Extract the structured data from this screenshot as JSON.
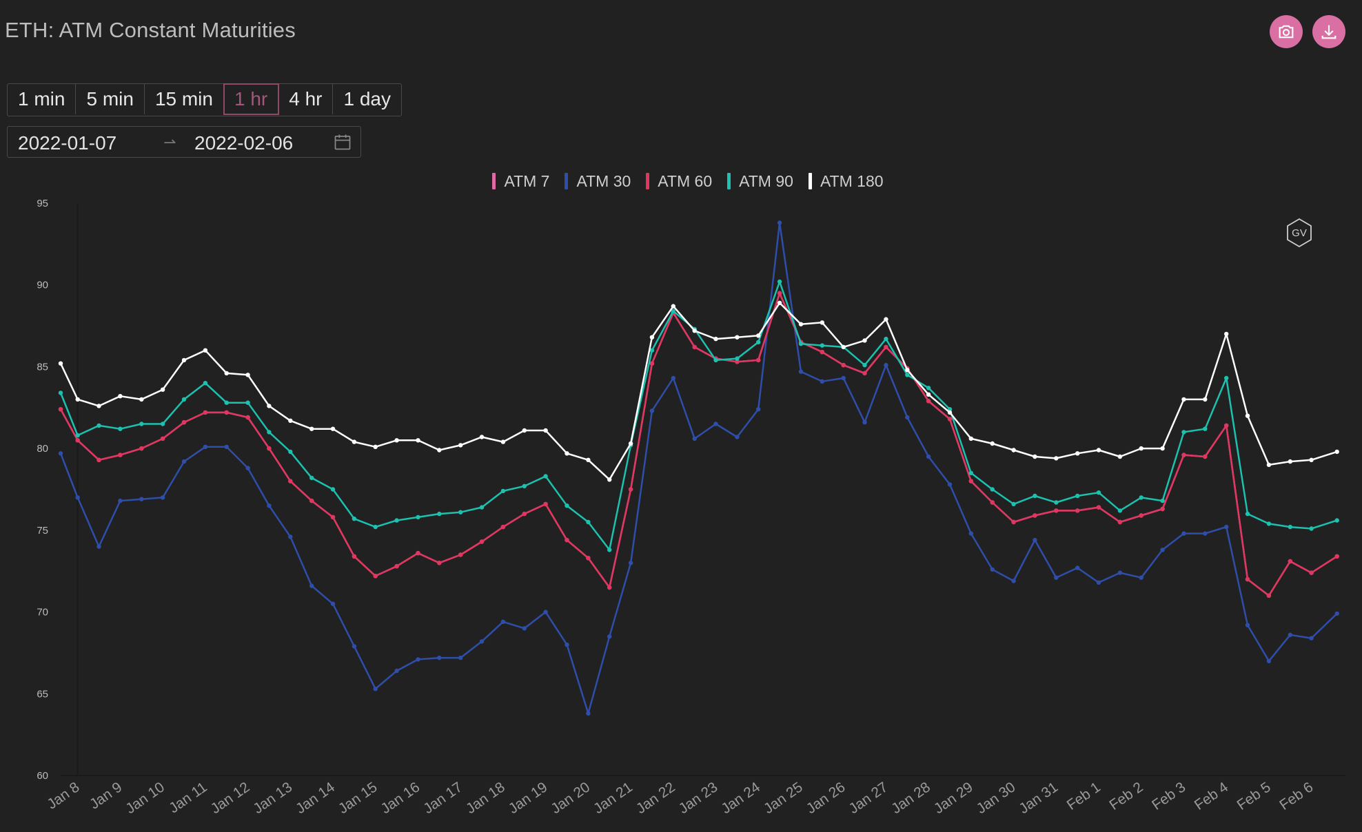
{
  "header": {
    "title": "ETH: ATM Constant Maturities"
  },
  "toolbar": {
    "camera_icon": "camera-icon",
    "download_icon": "download-icon"
  },
  "intervals": [
    {
      "label": "1 min",
      "active": false
    },
    {
      "label": "5 min",
      "active": false
    },
    {
      "label": "15 min",
      "active": false
    },
    {
      "label": "1 hr",
      "active": true
    },
    {
      "label": "4 hr",
      "active": false
    },
    {
      "label": "1 day",
      "active": false
    }
  ],
  "date_range": {
    "start": "2022-01-07",
    "end": "2022-02-06"
  },
  "watermark": {
    "text": "GV"
  },
  "chart_data": {
    "type": "line",
    "x": [
      "Jan 7.6",
      "Jan 8",
      "Jan 8.5",
      "Jan 9",
      "Jan 9.5",
      "Jan 10",
      "Jan 10.5",
      "Jan 11",
      "Jan 11.5",
      "Jan 12",
      "Jan 12.5",
      "Jan 13",
      "Jan 13.5",
      "Jan 14",
      "Jan 14.5",
      "Jan 15",
      "Jan 15.5",
      "Jan 16",
      "Jan 16.5",
      "Jan 17",
      "Jan 17.5",
      "Jan 18",
      "Jan 18.5",
      "Jan 19",
      "Jan 19.5",
      "Jan 20",
      "Jan 20.5",
      "Jan 21",
      "Jan 21.5",
      "Jan 22",
      "Jan 22.5",
      "Jan 23",
      "Jan 23.5",
      "Jan 24",
      "Jan 24.5",
      "Jan 25",
      "Jan 25.5",
      "Jan 26",
      "Jan 26.5",
      "Jan 27",
      "Jan 27.5",
      "Jan 28",
      "Jan 28.5",
      "Jan 29",
      "Jan 29.5",
      "Jan 30",
      "Jan 30.5",
      "Jan 31",
      "Jan 31.5",
      "Feb 1",
      "Feb 1.5",
      "Feb 2",
      "Feb 2.5",
      "Feb 3",
      "Feb 3.5",
      "Feb 4",
      "Feb 4.5",
      "Feb 5",
      "Feb 5.5",
      "Feb 6",
      "Feb 6.6"
    ],
    "x_numeric": [
      7.6,
      8,
      8.5,
      9,
      9.5,
      10,
      10.5,
      11,
      11.5,
      12,
      12.5,
      13,
      13.5,
      14,
      14.5,
      15,
      15.5,
      16,
      16.5,
      17,
      17.5,
      18,
      18.5,
      19,
      19.5,
      20,
      20.5,
      21,
      21.5,
      22,
      22.5,
      23,
      23.5,
      24,
      24.5,
      25,
      25.5,
      26,
      26.5,
      27,
      27.5,
      28,
      28.5,
      29,
      29.5,
      30,
      30.5,
      31,
      31.5,
      32,
      32.5,
      33,
      33.5,
      34,
      34.5,
      35,
      35.5,
      36,
      36.5,
      37,
      37.6
    ],
    "series": [
      {
        "name": "ATM 7",
        "color": "#e06aa3",
        "values": [
          82.4,
          80.5,
          79.3,
          79.6,
          80.0,
          80.6,
          81.6,
          82.2,
          82.2,
          81.9,
          80.0,
          78.0,
          76.8,
          75.8,
          73.4,
          72.2,
          72.8,
          73.6,
          73.0,
          73.5,
          74.3,
          75.2,
          76.0,
          76.6,
          74.4,
          73.3,
          71.5,
          77.5,
          85.2,
          88.3,
          86.2,
          85.5,
          85.3,
          85.4,
          89.5,
          86.5,
          85.9,
          85.1,
          84.6,
          86.2,
          84.9,
          82.9,
          81.8,
          78.0,
          76.7,
          75.5,
          75.9,
          76.2,
          76.2,
          76.4,
          75.5,
          75.9,
          76.3,
          79.6,
          79.5,
          81.4,
          72.0,
          71.0,
          73.1,
          72.4,
          73.4
        ]
      },
      {
        "name": "ATM 30",
        "color": "#2f4eaa",
        "values": [
          79.7,
          77.0,
          74.0,
          76.8,
          76.9,
          77.0,
          79.2,
          80.1,
          80.1,
          78.8,
          76.5,
          74.6,
          71.6,
          70.5,
          67.9,
          65.3,
          66.4,
          67.1,
          67.2,
          67.2,
          68.2,
          69.4,
          69.0,
          70.0,
          68.0,
          63.8,
          68.5,
          73.0,
          82.3,
          84.3,
          80.6,
          81.5,
          80.7,
          82.4,
          93.8,
          84.7,
          84.1,
          84.3,
          81.6,
          85.1,
          81.9,
          79.5,
          77.8,
          74.8,
          72.6,
          71.9,
          74.4,
          72.1,
          72.7,
          71.8,
          72.4,
          72.1,
          73.8,
          74.8,
          74.8,
          75.2,
          69.2,
          67.0,
          68.6,
          68.4,
          69.9
        ]
      },
      {
        "name": "ATM 60",
        "color": "#e0365f",
        "values": [
          82.4,
          80.5,
          79.3,
          79.6,
          80.0,
          80.6,
          81.6,
          82.2,
          82.2,
          81.9,
          80.0,
          78.0,
          76.8,
          75.8,
          73.4,
          72.2,
          72.8,
          73.6,
          73.0,
          73.5,
          74.3,
          75.2,
          76.0,
          76.6,
          74.4,
          73.3,
          71.5,
          77.5,
          85.2,
          88.3,
          86.2,
          85.5,
          85.3,
          85.4,
          89.5,
          86.5,
          85.9,
          85.1,
          84.6,
          86.2,
          84.9,
          82.9,
          81.8,
          78.0,
          76.7,
          75.5,
          75.9,
          76.2,
          76.2,
          76.4,
          75.5,
          75.9,
          76.3,
          79.6,
          79.5,
          81.4,
          72.0,
          71.0,
          73.1,
          72.4,
          73.4
        ]
      },
      {
        "name": "ATM 90",
        "color": "#1cc1b0",
        "values": [
          83.4,
          80.8,
          81.4,
          81.2,
          81.5,
          81.5,
          83.0,
          84.0,
          82.8,
          82.8,
          81.0,
          79.8,
          78.2,
          77.5,
          75.7,
          75.2,
          75.6,
          75.8,
          76.0,
          76.1,
          76.4,
          77.4,
          77.7,
          78.3,
          76.5,
          75.5,
          73.8,
          80.2,
          86.0,
          88.4,
          87.3,
          85.4,
          85.5,
          86.5,
          90.2,
          86.4,
          86.3,
          86.2,
          85.1,
          86.7,
          84.5,
          83.7,
          82.4,
          78.5,
          77.5,
          76.6,
          77.1,
          76.7,
          77.1,
          77.3,
          76.2,
          77.0,
          76.8,
          81.0,
          81.2,
          84.3,
          76.0,
          75.4,
          75.2,
          75.1,
          75.6
        ]
      },
      {
        "name": "ATM 180",
        "color": "#ffffff",
        "values": [
          85.2,
          83.0,
          82.6,
          83.2,
          83.0,
          83.6,
          85.4,
          86.0,
          84.6,
          84.5,
          82.6,
          81.7,
          81.2,
          81.2,
          80.4,
          80.1,
          80.5,
          80.5,
          79.9,
          80.2,
          80.7,
          80.4,
          81.1,
          81.1,
          79.7,
          79.3,
          78.1,
          80.3,
          86.8,
          88.7,
          87.2,
          86.7,
          86.8,
          86.9,
          88.9,
          87.6,
          87.7,
          86.2,
          86.6,
          87.9,
          84.8,
          83.3,
          82.2,
          80.6,
          80.3,
          79.9,
          79.5,
          79.4,
          79.7,
          79.9,
          79.5,
          80.0,
          80.0,
          83.0,
          83.0,
          87.0,
          82.0,
          79.0,
          79.2,
          79.3,
          79.8
        ]
      }
    ],
    "y_ticks": [
      "95",
      "90",
      "85",
      "80",
      "75",
      "70",
      "65",
      "60"
    ],
    "x_ticks": [
      "Jan 8",
      "Jan 9",
      "Jan 10",
      "Jan 11",
      "Jan 12",
      "Jan 13",
      "Jan 14",
      "Jan 15",
      "Jan 16",
      "Jan 17",
      "Jan 18",
      "Jan 19",
      "Jan 20",
      "Jan 21",
      "Jan 22",
      "Jan 23",
      "Jan 24",
      "Jan 25",
      "Jan 26",
      "Jan 27",
      "Jan 28",
      "Jan 29",
      "Jan 30",
      "Jan 31",
      "Feb 1",
      "Feb 2",
      "Feb 3",
      "Feb 4",
      "Feb 5",
      "Feb 6"
    ],
    "ylim": [
      60,
      95
    ],
    "xlim": [
      7.6,
      37.8
    ],
    "grid": false,
    "legend_position": "top-center",
    "title": "ETH: ATM Constant Maturities",
    "xlabel": "",
    "ylabel": ""
  }
}
